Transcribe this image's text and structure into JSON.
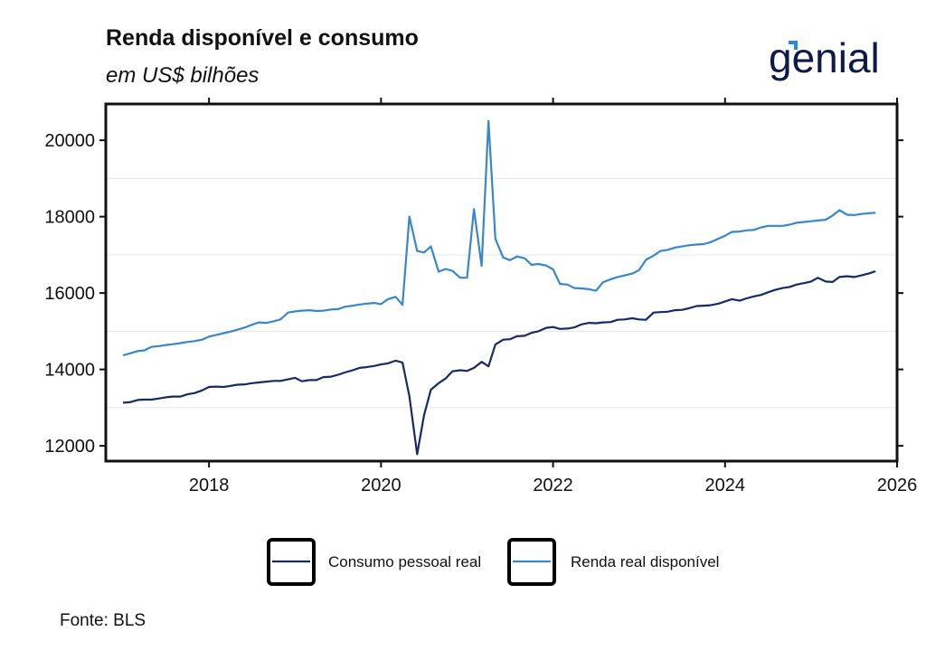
{
  "header": {
    "title": "Renda disponível e consumo",
    "subtitle": "em US$ bilhões"
  },
  "brand": {
    "logo_text": "genial",
    "color": "#0f1a4a",
    "accent": "#2a8bd4"
  },
  "footer": {
    "source": "Fonte: BLS"
  },
  "chart_data": {
    "type": "line",
    "title": "Renda disponível e consumo",
    "subtitle": "em US$ bilhões",
    "xlabel": "",
    "ylabel": "",
    "xlim": [
      2016.8,
      2026
    ],
    "ylim": [
      11600,
      20950
    ],
    "xticks": [
      2018,
      2020,
      2022,
      2024,
      2026
    ],
    "yticks": [
      12000,
      14000,
      16000,
      18000,
      20000
    ],
    "grid": "horizontal minor lines",
    "legend_position": "bottom",
    "series": [
      {
        "name": "Consumo pessoal real",
        "color": "#182a66",
        "points": [
          [
            2017.0,
            13130
          ],
          [
            2017.08,
            13140
          ],
          [
            2017.17,
            13200
          ],
          [
            2017.25,
            13210
          ],
          [
            2017.33,
            13210
          ],
          [
            2017.42,
            13240
          ],
          [
            2017.5,
            13270
          ],
          [
            2017.58,
            13290
          ],
          [
            2017.67,
            13290
          ],
          [
            2017.75,
            13350
          ],
          [
            2017.83,
            13380
          ],
          [
            2017.92,
            13450
          ],
          [
            2018.0,
            13540
          ],
          [
            2018.08,
            13550
          ],
          [
            2018.17,
            13540
          ],
          [
            2018.25,
            13570
          ],
          [
            2018.33,
            13600
          ],
          [
            2018.42,
            13610
          ],
          [
            2018.5,
            13640
          ],
          [
            2018.58,
            13660
          ],
          [
            2018.67,
            13680
          ],
          [
            2018.75,
            13700
          ],
          [
            2018.83,
            13700
          ],
          [
            2018.92,
            13740
          ],
          [
            2019.0,
            13780
          ],
          [
            2019.08,
            13690
          ],
          [
            2019.17,
            13720
          ],
          [
            2019.25,
            13720
          ],
          [
            2019.33,
            13800
          ],
          [
            2019.42,
            13810
          ],
          [
            2019.5,
            13860
          ],
          [
            2019.58,
            13920
          ],
          [
            2019.67,
            13980
          ],
          [
            2019.75,
            14040
          ],
          [
            2019.83,
            14060
          ],
          [
            2019.92,
            14090
          ],
          [
            2020.0,
            14130
          ],
          [
            2020.08,
            14160
          ],
          [
            2020.17,
            14230
          ],
          [
            2020.25,
            14180
          ],
          [
            2020.33,
            13300
          ],
          [
            2020.42,
            11780
          ],
          [
            2020.5,
            12800
          ],
          [
            2020.58,
            13470
          ],
          [
            2020.67,
            13640
          ],
          [
            2020.75,
            13760
          ],
          [
            2020.83,
            13950
          ],
          [
            2020.92,
            13980
          ],
          [
            2021.0,
            13960
          ],
          [
            2021.08,
            14040
          ],
          [
            2021.17,
            14200
          ],
          [
            2021.25,
            14080
          ],
          [
            2021.33,
            14650
          ],
          [
            2021.42,
            14780
          ],
          [
            2021.5,
            14790
          ],
          [
            2021.58,
            14870
          ],
          [
            2021.67,
            14880
          ],
          [
            2021.75,
            14960
          ],
          [
            2021.83,
            15000
          ],
          [
            2021.92,
            15090
          ],
          [
            2022.0,
            15110
          ],
          [
            2022.08,
            15060
          ],
          [
            2022.17,
            15070
          ],
          [
            2022.25,
            15100
          ],
          [
            2022.33,
            15180
          ],
          [
            2022.42,
            15220
          ],
          [
            2022.5,
            15210
          ],
          [
            2022.58,
            15230
          ],
          [
            2022.67,
            15240
          ],
          [
            2022.75,
            15300
          ],
          [
            2022.83,
            15310
          ],
          [
            2022.92,
            15340
          ],
          [
            2023.0,
            15310
          ],
          [
            2023.08,
            15300
          ],
          [
            2023.17,
            15490
          ],
          [
            2023.25,
            15500
          ],
          [
            2023.33,
            15510
          ],
          [
            2023.42,
            15550
          ],
          [
            2023.5,
            15560
          ],
          [
            2023.58,
            15600
          ],
          [
            2023.67,
            15660
          ],
          [
            2023.75,
            15670
          ],
          [
            2023.83,
            15680
          ],
          [
            2023.92,
            15720
          ],
          [
            2024.0,
            15780
          ],
          [
            2024.08,
            15840
          ],
          [
            2024.17,
            15800
          ],
          [
            2024.25,
            15860
          ],
          [
            2024.33,
            15910
          ],
          [
            2024.42,
            15950
          ],
          [
            2024.5,
            16020
          ],
          [
            2024.58,
            16080
          ],
          [
            2024.67,
            16130
          ],
          [
            2024.75,
            16160
          ],
          [
            2024.83,
            16220
          ],
          [
            2024.92,
            16260
          ],
          [
            2025.0,
            16300
          ],
          [
            2025.08,
            16400
          ],
          [
            2025.17,
            16300
          ],
          [
            2025.25,
            16290
          ],
          [
            2025.33,
            16420
          ],
          [
            2025.42,
            16440
          ],
          [
            2025.5,
            16420
          ],
          [
            2025.58,
            16460
          ],
          [
            2025.67,
            16510
          ],
          [
            2025.75,
            16570
          ]
        ]
      },
      {
        "name": "Renda real disponível",
        "color": "#3a87c8",
        "points": [
          [
            2017.0,
            14370
          ],
          [
            2017.08,
            14420
          ],
          [
            2017.17,
            14480
          ],
          [
            2017.25,
            14500
          ],
          [
            2017.33,
            14590
          ],
          [
            2017.42,
            14610
          ],
          [
            2017.5,
            14640
          ],
          [
            2017.58,
            14660
          ],
          [
            2017.67,
            14690
          ],
          [
            2017.75,
            14720
          ],
          [
            2017.83,
            14740
          ],
          [
            2017.92,
            14780
          ],
          [
            2018.0,
            14860
          ],
          [
            2018.08,
            14900
          ],
          [
            2018.17,
            14950
          ],
          [
            2018.25,
            14990
          ],
          [
            2018.33,
            15040
          ],
          [
            2018.42,
            15100
          ],
          [
            2018.5,
            15170
          ],
          [
            2018.58,
            15230
          ],
          [
            2018.67,
            15220
          ],
          [
            2018.75,
            15260
          ],
          [
            2018.83,
            15310
          ],
          [
            2018.92,
            15490
          ],
          [
            2019.0,
            15520
          ],
          [
            2019.08,
            15540
          ],
          [
            2019.17,
            15550
          ],
          [
            2019.25,
            15530
          ],
          [
            2019.33,
            15540
          ],
          [
            2019.42,
            15570
          ],
          [
            2019.5,
            15580
          ],
          [
            2019.58,
            15640
          ],
          [
            2019.67,
            15670
          ],
          [
            2019.75,
            15700
          ],
          [
            2019.83,
            15720
          ],
          [
            2019.92,
            15740
          ],
          [
            2020.0,
            15710
          ],
          [
            2020.08,
            15840
          ],
          [
            2020.17,
            15900
          ],
          [
            2020.25,
            15690
          ],
          [
            2020.33,
            18000
          ],
          [
            2020.42,
            17100
          ],
          [
            2020.5,
            17060
          ],
          [
            2020.58,
            17220
          ],
          [
            2020.67,
            16560
          ],
          [
            2020.75,
            16630
          ],
          [
            2020.83,
            16580
          ],
          [
            2020.92,
            16400
          ],
          [
            2021.0,
            16400
          ],
          [
            2021.08,
            18200
          ],
          [
            2021.17,
            16710
          ],
          [
            2021.25,
            20500
          ],
          [
            2021.33,
            17420
          ],
          [
            2021.42,
            16930
          ],
          [
            2021.5,
            16860
          ],
          [
            2021.58,
            16960
          ],
          [
            2021.67,
            16910
          ],
          [
            2021.75,
            16740
          ],
          [
            2021.83,
            16760
          ],
          [
            2021.92,
            16720
          ],
          [
            2022.0,
            16620
          ],
          [
            2022.08,
            16240
          ],
          [
            2022.17,
            16220
          ],
          [
            2022.25,
            16130
          ],
          [
            2022.33,
            16120
          ],
          [
            2022.42,
            16100
          ],
          [
            2022.5,
            16060
          ],
          [
            2022.58,
            16280
          ],
          [
            2022.67,
            16360
          ],
          [
            2022.75,
            16420
          ],
          [
            2022.83,
            16460
          ],
          [
            2022.92,
            16510
          ],
          [
            2023.0,
            16600
          ],
          [
            2023.08,
            16870
          ],
          [
            2023.17,
            16980
          ],
          [
            2023.25,
            17100
          ],
          [
            2023.33,
            17130
          ],
          [
            2023.42,
            17190
          ],
          [
            2023.5,
            17220
          ],
          [
            2023.58,
            17250
          ],
          [
            2023.67,
            17270
          ],
          [
            2023.75,
            17280
          ],
          [
            2023.83,
            17330
          ],
          [
            2023.92,
            17420
          ],
          [
            2024.0,
            17500
          ],
          [
            2024.08,
            17600
          ],
          [
            2024.17,
            17610
          ],
          [
            2024.25,
            17640
          ],
          [
            2024.33,
            17650
          ],
          [
            2024.42,
            17720
          ],
          [
            2024.5,
            17760
          ],
          [
            2024.58,
            17760
          ],
          [
            2024.67,
            17760
          ],
          [
            2024.75,
            17790
          ],
          [
            2024.83,
            17840
          ],
          [
            2024.92,
            17860
          ],
          [
            2025.0,
            17880
          ],
          [
            2025.08,
            17900
          ],
          [
            2025.17,
            17920
          ],
          [
            2025.25,
            18030
          ],
          [
            2025.33,
            18170
          ],
          [
            2025.42,
            18050
          ],
          [
            2025.5,
            18040
          ],
          [
            2025.58,
            18070
          ],
          [
            2025.67,
            18090
          ],
          [
            2025.75,
            18100
          ]
        ]
      }
    ]
  }
}
